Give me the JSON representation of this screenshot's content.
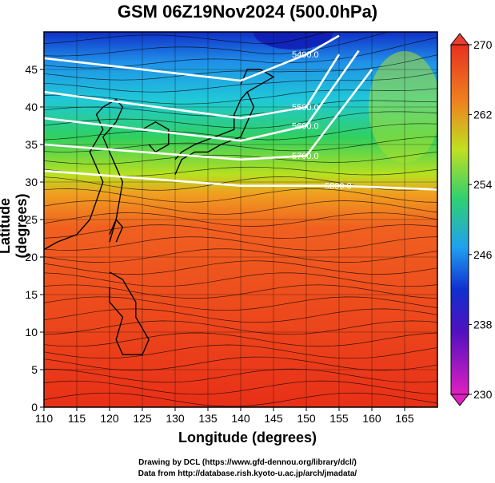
{
  "title": "GSM 06Z19Nov2024 (500.0hPa)",
  "x_axis": {
    "label": "Longitude (degrees)",
    "range": [
      110,
      170
    ],
    "ticks": [
      110,
      115,
      120,
      125,
      130,
      135,
      140,
      145,
      150,
      155,
      160,
      165
    ]
  },
  "y_axis": {
    "label": "Latitude  (degrees)",
    "range": [
      0,
      50
    ],
    "ticks": [
      0,
      5,
      10,
      15,
      20,
      25,
      30,
      35,
      40,
      45
    ]
  },
  "colorbar": {
    "min": 230,
    "max": 270,
    "labels": [
      230,
      238,
      246,
      254,
      262,
      270
    ],
    "colors": [
      "#e020c0",
      "#1010c0",
      "#20b0f0",
      "#30d050",
      "#f0d020",
      "#f07020",
      "#e83018"
    ]
  },
  "contours": [
    {
      "label": "5400.0",
      "lat_at_110": 46.5,
      "lat_at_140": 43.5,
      "lat_at_150": 47.0,
      "lat_at_155": 49.5
    },
    {
      "label": "5500.0",
      "lat_at_110": 42.0,
      "lat_at_140": 38.5,
      "lat_at_150": 40.0,
      "lat_at_155": 47.0
    },
    {
      "label": "5600.0",
      "lat_at_110": 38.5,
      "lat_at_140": 35.5,
      "lat_at_150": 37.5,
      "lat_at_158": 47.5
    },
    {
      "label": "5700.0",
      "lat_at_110": 35.0,
      "lat_at_140": 33.0,
      "lat_at_150": 33.5,
      "lat_at_160": 45.0
    },
    {
      "label": "5800.0",
      "lat_at_110": 31.5,
      "lat_at_140": 29.5,
      "lat_at_155": 29.5,
      "lat_at_170": 29.0
    }
  ],
  "credits": {
    "line1": "Drawing by DCL (https://www.gfd-dennou.org/library/dcl/)",
    "line2": "Data from http://database.rish.kyoto-u.ac.jp/arch/jmadata/"
  }
}
